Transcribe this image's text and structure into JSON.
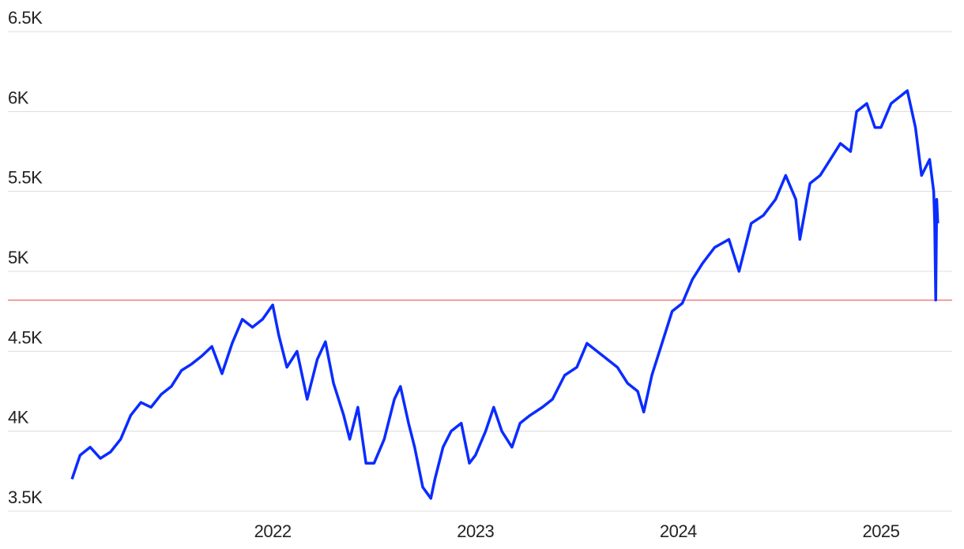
{
  "chart_data": {
    "type": "line",
    "x": [
      2021.01,
      2021.05,
      2021.1,
      2021.15,
      2021.2,
      2021.25,
      2021.3,
      2021.35,
      2021.4,
      2021.45,
      2021.5,
      2021.55,
      2021.6,
      2021.65,
      2021.7,
      2021.75,
      2021.8,
      2021.85,
      2021.9,
      2021.95,
      2022.0,
      2022.03,
      2022.07,
      2022.12,
      2022.17,
      2022.22,
      2022.26,
      2022.3,
      2022.35,
      2022.38,
      2022.42,
      2022.46,
      2022.5,
      2022.55,
      2022.6,
      2022.63,
      2022.67,
      2022.7,
      2022.74,
      2022.78,
      2022.8,
      2022.84,
      2022.88,
      2022.93,
      2022.97,
      2023.0,
      2023.05,
      2023.09,
      2023.13,
      2023.18,
      2023.22,
      2023.27,
      2023.33,
      2023.38,
      2023.44,
      2023.5,
      2023.55,
      2023.6,
      2023.65,
      2023.7,
      2023.75,
      2023.8,
      2023.83,
      2023.87,
      2023.92,
      2023.97,
      2024.02,
      2024.07,
      2024.12,
      2024.18,
      2024.25,
      2024.3,
      2024.36,
      2024.42,
      2024.48,
      2024.53,
      2024.58,
      2024.6,
      2024.65,
      2024.7,
      2024.75,
      2024.8,
      2024.85,
      2024.88,
      2024.93,
      2024.97,
      2025.0,
      2025.05,
      2025.1,
      2025.13,
      2025.17,
      2025.2,
      2025.22,
      2025.24,
      2025.26,
      2025.265,
      2025.27,
      2025.275,
      2025.28
    ],
    "values": [
      3700,
      3850,
      3900,
      3830,
      3870,
      3950,
      4100,
      4180,
      4150,
      4230,
      4280,
      4380,
      4420,
      4470,
      4530,
      4360,
      4550,
      4700,
      4650,
      4700,
      4790,
      4600,
      4400,
      4500,
      4200,
      4450,
      4560,
      4300,
      4100,
      3950,
      4150,
      3800,
      3800,
      3950,
      4200,
      4280,
      4050,
      3900,
      3650,
      3580,
      3700,
      3900,
      4000,
      4050,
      3800,
      3850,
      4000,
      4150,
      4000,
      3900,
      4050,
      4100,
      4150,
      4200,
      4350,
      4400,
      4550,
      4500,
      4450,
      4400,
      4300,
      4250,
      4120,
      4350,
      4550,
      4750,
      4800,
      4950,
      5050,
      5150,
      5200,
      5000,
      5300,
      5350,
      5450,
      5600,
      5450,
      5200,
      5550,
      5600,
      5700,
      5800,
      5750,
      6000,
      6050,
      5900,
      5900,
      6050,
      6100,
      6130,
      5900,
      5600,
      5650,
      5700,
      5500,
      5300,
      4820,
      5450,
      5300
    ],
    "color": "#0a2cff",
    "xlim": [
      2020.694,
      2025.351
    ],
    "xticks": [
      2022,
      2023,
      2024,
      2025
    ],
    "ylim": [
      3500,
      6500
    ],
    "yticks": [
      {
        "value": 3500,
        "label": "3.5K"
      },
      {
        "value": 4000,
        "label": "4K"
      },
      {
        "value": 4500,
        "label": "4.5K"
      },
      {
        "value": 5000,
        "label": "5K"
      },
      {
        "value": 5500,
        "label": "5.5K"
      },
      {
        "value": 6000,
        "label": "6K"
      },
      {
        "value": 6500,
        "label": "6.5K"
      }
    ],
    "grid": true,
    "reference_line": {
      "value": 4820,
      "color": "#f07a7a"
    }
  }
}
